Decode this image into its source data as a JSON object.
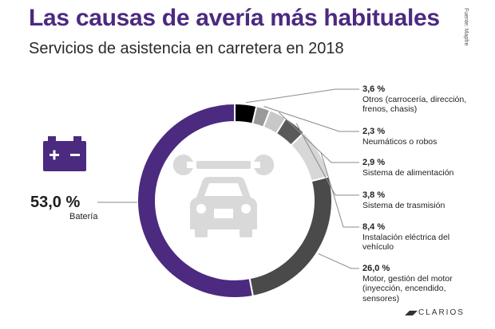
{
  "header": {
    "title": "Las causas de avería más habituales",
    "subtitle": "Servicios de asistencia en carretera en 2018",
    "source": "Fuente: Mapfre"
  },
  "brand": {
    "name": "CLARIOS"
  },
  "chart_data": {
    "type": "pie",
    "style": "donut",
    "title": "Las causas de avería más habituales",
    "subtitle": "Servicios de asistencia en carretera en 2018",
    "slices": [
      {
        "pct_label": "53,0 %",
        "value": 53.0,
        "name": "Batería",
        "color": "#4b2a80"
      },
      {
        "pct_label": "3,6 %",
        "value": 3.6,
        "name": "Otros (carrocería, dirección, frenos, chasis)",
        "color": "#000000"
      },
      {
        "pct_label": "2,3 %",
        "value": 2.3,
        "name": "Neumáticos o robos",
        "color": "#9a9a9a"
      },
      {
        "pct_label": "2,9 %",
        "value": 2.9,
        "name": "Sistema de alimentación",
        "color": "#c8c8c8"
      },
      {
        "pct_label": "3,8 %",
        "value": 3.8,
        "name": "Sistema de trasmisión",
        "color": "#5a5a5a"
      },
      {
        "pct_label": "8,4 %",
        "value": 8.4,
        "name": "Instalación eléctrica del vehículo",
        "color": "#d7d7d7"
      },
      {
        "pct_label": "26,0 %",
        "value": 26.0,
        "name": "Motor, gestión del motor (inyección, encendido, sensores)",
        "color": "#4a4a4a"
      }
    ],
    "icons": [
      "battery-icon",
      "wrench-icon",
      "car-icon"
    ]
  }
}
